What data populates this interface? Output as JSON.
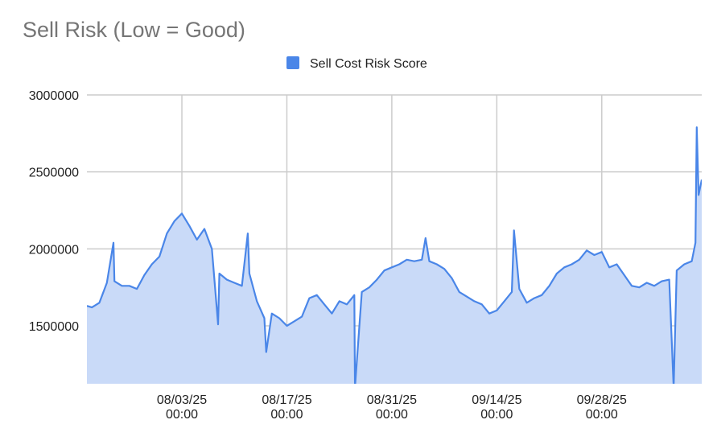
{
  "chart_data": {
    "type": "area",
    "title": "Sell Risk (Low = Good)",
    "x": [
      "07/21/25 08:00",
      "07/22/25 00:00",
      "07/23/25 00:00",
      "07/24/25 00:00",
      "07/24/25 21:00",
      "07/25/25 00:00",
      "07/26/25 00:00",
      "07/27/25 00:00",
      "07/28/25 00:00",
      "07/29/25 00:00",
      "07/30/25 00:00",
      "07/31/25 00:00",
      "08/01/25 00:00",
      "08/02/25 00:00",
      "08/03/25 00:00",
      "08/04/25 00:00",
      "08/05/25 00:00",
      "08/06/25 00:00",
      "08/07/25 00:00",
      "08/07/25 20:00",
      "08/08/25 00:00",
      "08/09/25 00:00",
      "08/10/25 00:00",
      "08/11/25 00:00",
      "08/11/25 19:00",
      "08/12/25 00:00",
      "08/13/25 00:00",
      "08/14/25 00:00",
      "08/14/25 06:00",
      "08/15/25 00:00",
      "08/16/25 00:00",
      "08/17/25 00:00",
      "08/18/25 00:00",
      "08/19/25 00:00",
      "08/20/25 00:00",
      "08/21/25 00:00",
      "08/22/25 00:00",
      "08/23/25 00:00",
      "08/24/25 00:00",
      "08/25/25 00:00",
      "08/26/25 00:00",
      "08/26/25 02:00",
      "08/27/25 00:00",
      "08/28/25 00:00",
      "08/29/25 00:00",
      "08/30/25 00:00",
      "08/31/25 00:00",
      "09/01/25 00:00",
      "09/02/25 00:00",
      "09/03/25 00:00",
      "09/04/25 00:00",
      "09/04/25 12:00",
      "09/05/25 00:00",
      "09/06/25 00:00",
      "09/07/25 00:00",
      "09/08/25 00:00",
      "09/09/25 00:00",
      "09/10/25 00:00",
      "09/11/25 00:00",
      "09/12/25 00:00",
      "09/13/25 00:00",
      "09/14/25 00:00",
      "09/15/25 00:00",
      "09/16/25 00:00",
      "09/16/25 07:00",
      "09/17/25 00:00",
      "09/18/25 00:00",
      "09/19/25 00:00",
      "09/20/25 00:00",
      "09/21/25 00:00",
      "09/22/25 00:00",
      "09/23/25 00:00",
      "09/24/25 00:00",
      "09/25/25 00:00",
      "09/26/25 00:00",
      "09/27/25 00:00",
      "09/28/25 00:00",
      "09/29/25 00:00",
      "09/30/25 00:00",
      "10/01/25 00:00",
      "10/02/25 00:00",
      "10/03/25 00:00",
      "10/04/25 00:00",
      "10/05/25 00:00",
      "10/06/25 00:00",
      "10/07/25 00:00",
      "10/07/25 14:00",
      "10/08/25 00:00",
      "10/09/25 00:00",
      "10/10/25 00:00",
      "10/10/25 12:00",
      "10/10/25 16:00",
      "10/10/25 22:00",
      "10/11/25 08:00"
    ],
    "series": [
      {
        "name": "Sell Cost Risk Score",
        "color": "#4a86e8",
        "fill": "#c9daf8",
        "values": [
          1630000,
          1620000,
          1650000,
          1780000,
          2040000,
          1790000,
          1760000,
          1760000,
          1740000,
          1830000,
          1900000,
          1950000,
          2100000,
          2180000,
          2230000,
          2150000,
          2060000,
          2130000,
          2000000,
          1510000,
          1840000,
          1800000,
          1780000,
          1760000,
          2100000,
          1840000,
          1660000,
          1550000,
          1330000,
          1580000,
          1550000,
          1500000,
          1530000,
          1560000,
          1680000,
          1700000,
          1640000,
          1580000,
          1660000,
          1640000,
          1700000,
          1100000,
          1720000,
          1750000,
          1800000,
          1860000,
          1880000,
          1900000,
          1930000,
          1920000,
          1930000,
          2070000,
          1920000,
          1900000,
          1870000,
          1810000,
          1720000,
          1690000,
          1660000,
          1640000,
          1580000,
          1600000,
          1660000,
          1720000,
          2120000,
          1740000,
          1650000,
          1680000,
          1700000,
          1760000,
          1840000,
          1880000,
          1900000,
          1930000,
          1990000,
          1960000,
          1980000,
          1880000,
          1900000,
          1830000,
          1760000,
          1750000,
          1780000,
          1760000,
          1790000,
          1800000,
          1100000,
          1860000,
          1900000,
          1920000,
          2040000,
          2790000,
          2350000,
          2450000
        ]
      }
    ],
    "xlim": [
      "07/21/25 08:00",
      "10/11/25 08:00"
    ],
    "xticks": [
      "08/03/25 00:00",
      "08/17/25 00:00",
      "08/31/25 00:00",
      "09/14/25 00:00",
      "09/28/25 00:00"
    ],
    "ylim": [
      1124000,
      3000000
    ],
    "yticks": [
      1500000,
      2000000,
      2500000,
      3000000
    ],
    "grid": true
  }
}
